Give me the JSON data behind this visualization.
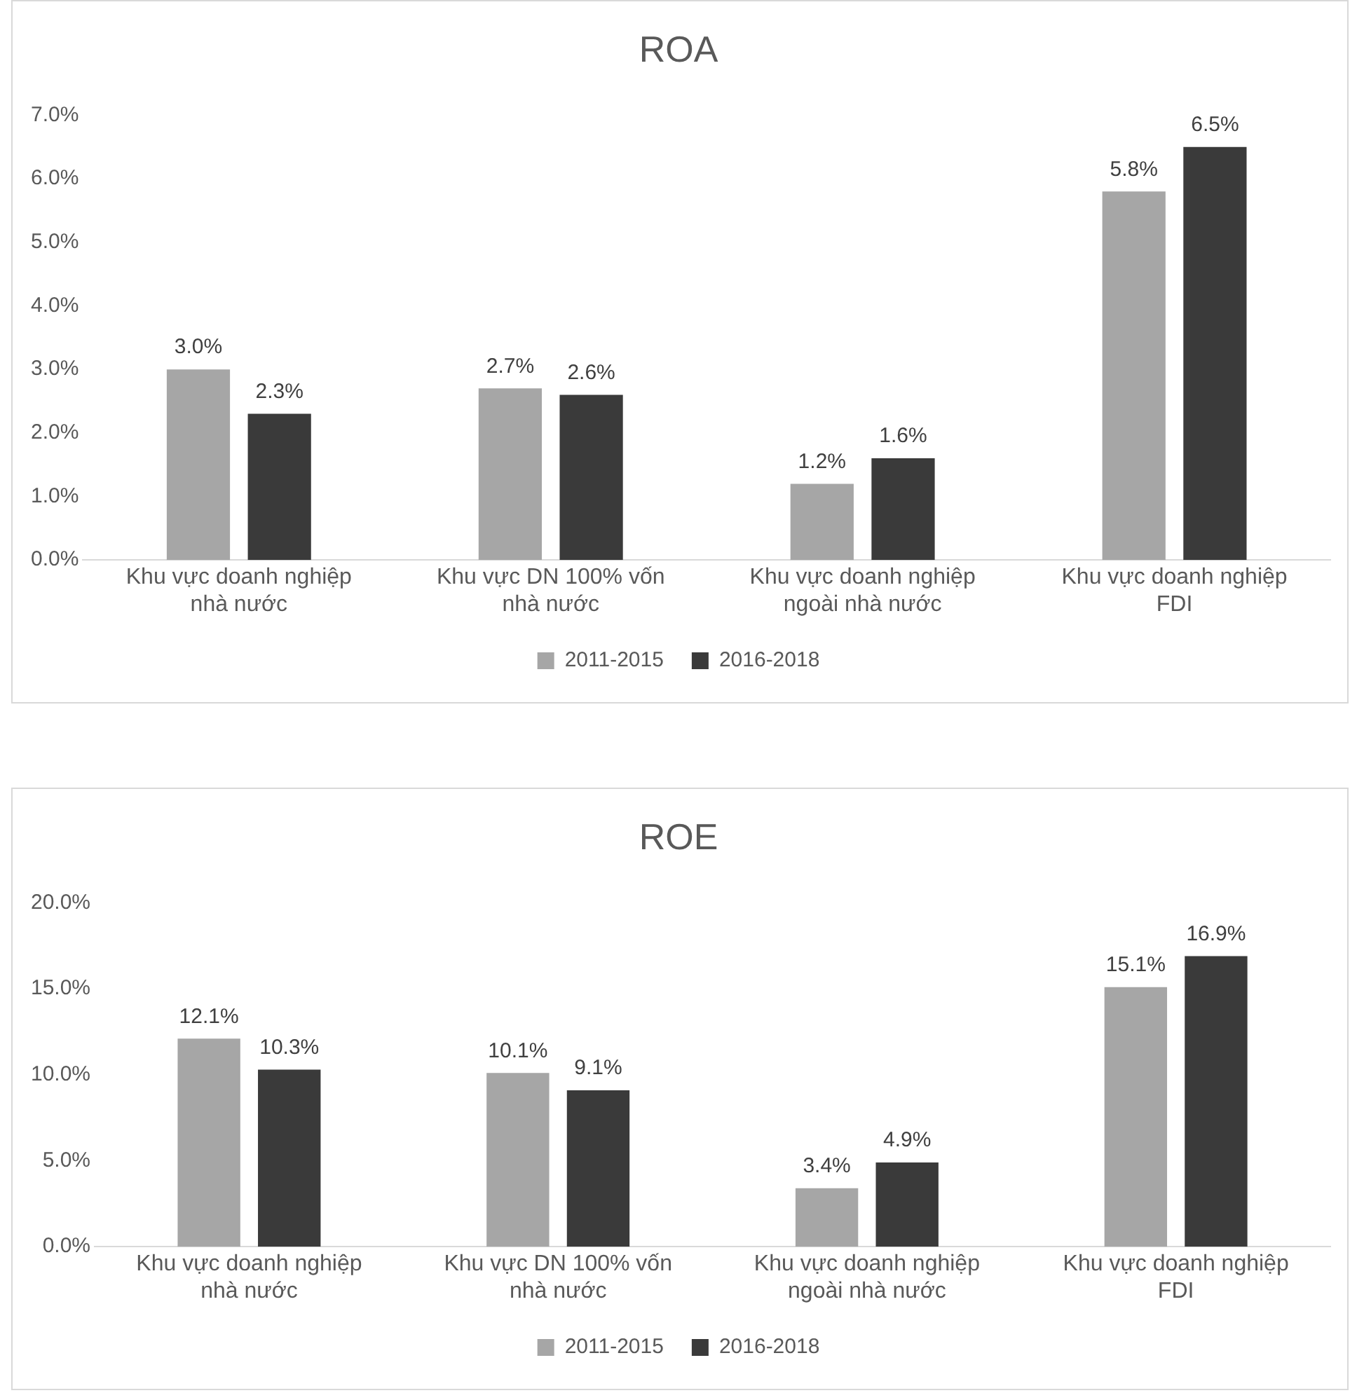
{
  "chart_data": [
    {
      "type": "bar",
      "title": "ROA",
      "categories": [
        "Khu vực doanh nghiệp nhà nước",
        "Khu vực DN 100% vốn nhà nước",
        "Khu vực doanh nghiệp ngoài nhà nước",
        "Khu vực doanh nghiệp FDI"
      ],
      "series": [
        {
          "name": "2011-2015",
          "color": "#a6a6a6",
          "values": [
            3.0,
            2.7,
            1.2,
            5.8
          ],
          "value_labels": [
            "3.0%",
            "2.7%",
            "1.2%",
            "5.8%"
          ]
        },
        {
          "name": "2016-2018",
          "color": "#3a3a3a",
          "values": [
            2.3,
            2.6,
            1.6,
            6.5
          ],
          "value_labels": [
            "2.3%",
            "2.6%",
            "1.6%",
            "6.5%"
          ]
        }
      ],
      "ylim": [
        0,
        7
      ],
      "yticks": [
        {
          "value": 0,
          "label": "0.0%"
        },
        {
          "value": 1,
          "label": "1.0%"
        },
        {
          "value": 2,
          "label": "2.0%"
        },
        {
          "value": 3,
          "label": "3.0%"
        },
        {
          "value": 4,
          "label": "4.0%"
        },
        {
          "value": 5,
          "label": "5.0%"
        },
        {
          "value": 6,
          "label": "6.0%"
        },
        {
          "value": 7,
          "label": "7.0%"
        }
      ],
      "grid": false,
      "legend": "bottom"
    },
    {
      "type": "bar",
      "title": "ROE",
      "categories": [
        "Khu vực doanh nghiệp nhà nước",
        "Khu vực DN 100% vốn nhà nước",
        "Khu vực doanh nghiệp ngoài nhà nước",
        "Khu vực doanh nghiệp FDI"
      ],
      "series": [
        {
          "name": "2011-2015",
          "color": "#a6a6a6",
          "values": [
            12.1,
            10.1,
            3.4,
            15.1
          ],
          "value_labels": [
            "12.1%",
            "10.1%",
            "3.4%",
            "15.1%"
          ]
        },
        {
          "name": "2016-2018",
          "color": "#3a3a3a",
          "values": [
            10.3,
            9.1,
            4.9,
            16.9
          ],
          "value_labels": [
            "10.3%",
            "9.1%",
            "4.9%",
            "16.9%"
          ]
        }
      ],
      "ylim": [
        0,
        20
      ],
      "yticks": [
        {
          "value": 0,
          "label": "0.0%"
        },
        {
          "value": 5,
          "label": "5.0%"
        },
        {
          "value": 10,
          "label": "10.0%"
        },
        {
          "value": 15,
          "label": "15.0%"
        },
        {
          "value": 20,
          "label": "20.0%"
        }
      ],
      "grid": false,
      "legend": "bottom"
    }
  ]
}
